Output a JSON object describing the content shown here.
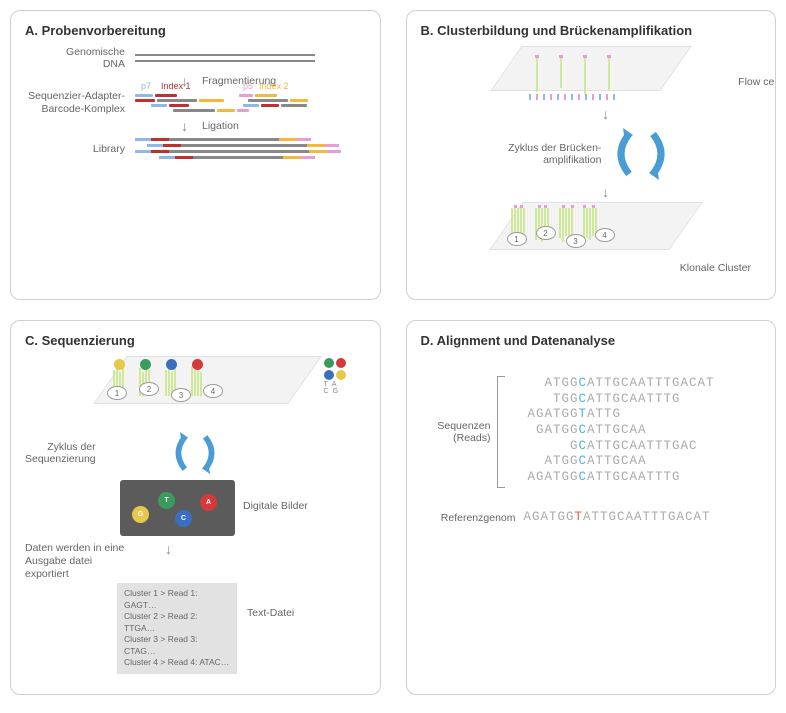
{
  "panelA": {
    "title": "A. Probenvorbereitung",
    "row1_label": "Genomische\nDNA",
    "step1_label": "Fragmentierung",
    "row2_label": "Sequenzier-Adapter-\nBarcode-Komplex",
    "annot_p7": "p7",
    "annot_idx1": "Index 1",
    "annot_p5": "p5",
    "annot_idx2": "Index 2",
    "step2_label": "Ligation",
    "row3_label": "Library",
    "colors": {
      "p7": "#8fb8e6",
      "idx1": "#c03030",
      "gray": "#888888",
      "p5": "#e59ed6",
      "idx2": "#f2b93b"
    }
  },
  "panelB": {
    "title": "B. Clusterbildung und Brückenamplifikation",
    "flowcell_label": "Flow cell",
    "cycle_label": "Zyklus der Brücken-\namplifikation",
    "cluster_label": "Klonale Cluster",
    "colors": {
      "arrow": "#4a9dd4",
      "strand": "#cde48f",
      "tip_pink": "#e59ed6",
      "tip_blue": "#8fb8e6",
      "fc": "#ededed"
    },
    "cluster_nums": [
      "1",
      "2",
      "3",
      "4"
    ]
  },
  "panelC": {
    "title": "C. Sequenzierung",
    "cycle_label": "Zyklus der\nSequenzierung",
    "digital_label": "Digitale Bilder",
    "export_label": "Daten werden in eine\nAusgabe datei\nexportiert",
    "textfile_label": "Text-Datei",
    "file_lines": [
      "Cluster 1 > Read 1: GAGT…",
      "Cluster 2 > Read 2: TTGA…",
      "Cluster 3 > Read 3: CTAG…",
      "Cluster 4 > Read 4: ATAC…"
    ],
    "bases": {
      "G": {
        "color": "#e6c84a",
        "letter": "G"
      },
      "T": {
        "color": "#3a9c5c",
        "letter": "T"
      },
      "C": {
        "color": "#3a6fbf",
        "letter": "C"
      },
      "A": {
        "color": "#d43a3a",
        "letter": "A"
      }
    },
    "cluster_nums": [
      "1",
      "2",
      "3",
      "4"
    ],
    "colors": {
      "arrow": "#4a9dd4",
      "device": "#5b5b5b",
      "fc": "#ededed",
      "strand": "#cde48f"
    }
  },
  "panelD": {
    "title": "D. Alignment und Datenanalyse",
    "seq_label": "Sequenzen\n(Reads)",
    "ref_label": "Referenzgenom",
    "reads": [
      {
        "pad": 0,
        "pre": "ATGG",
        "hl": "C",
        "post": "ATTGCAATTTGACAT"
      },
      {
        "pad": 1,
        "pre": "TGG",
        "hl": "C",
        "post": "ATTGCAATTTG"
      },
      {
        "pad": -2,
        "pre": "AGATGG",
        "hl": "T",
        "post": "ATTG"
      },
      {
        "pad": -1,
        "pre": "GATGG",
        "hl": "C",
        "post": "ATTGCAA"
      },
      {
        "pad": 3,
        "pre": "G",
        "hl": "C",
        "post": "ATTGCAATTTGAC"
      },
      {
        "pad": 0,
        "pre": "ATGG",
        "hl": "C",
        "post": "ATTGCAA"
      },
      {
        "pad": -2,
        "pre": "AGATGG",
        "hl": "C",
        "post": "ATTGCAATTTG"
      }
    ],
    "reference": {
      "pre": "AGATGG",
      "hl": "T",
      "post": "ATTGCAATTTGACAT"
    },
    "colors": {
      "seq": "#aaaaaa",
      "hl": "#4ab3e2",
      "ref_hl": "#e85c41"
    }
  }
}
